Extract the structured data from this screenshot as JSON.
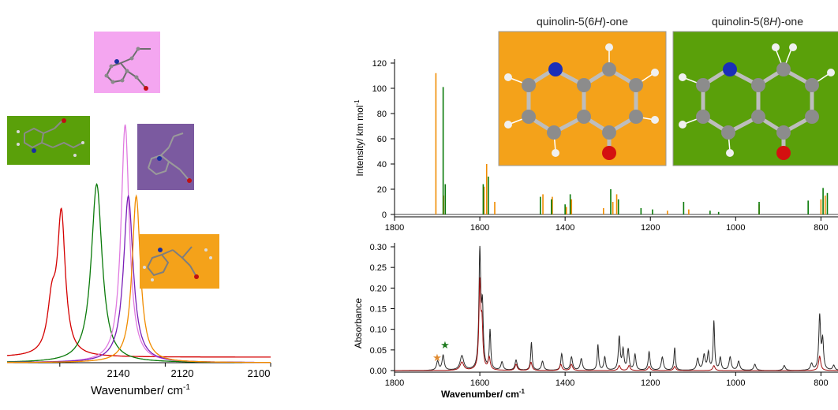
{
  "left_panel": {
    "xlabel": "Wavenumber/ cm",
    "xlabel_sup": "-1",
    "ticks": [
      "2140",
      "2120",
      "2100"
    ],
    "tick_values": [
      2140,
      2120,
      2100
    ],
    "xlim": [
      2150,
      2100
    ]
  },
  "top_right": {
    "ylabel": "Intensity/ km mol",
    "ylabel_sup": "-1",
    "yticks": [
      "0",
      "20",
      "40",
      "60",
      "80",
      "100",
      "120"
    ],
    "xticks": [
      "1800",
      "1600",
      "1400",
      "1200",
      "1000",
      "800"
    ],
    "mol1_title": {
      "pre": "quinolin-5(6",
      "it": "H",
      "post": ")-one"
    },
    "mol2_title": {
      "pre": "quinolin-5(8",
      "it": "H",
      "post": ")-one"
    }
  },
  "bottom_right": {
    "ylabel": "Absorbance",
    "xlabel": "Wavenumber/ cm",
    "xlabel_sup": "-1",
    "yticks": [
      "0.00",
      "0.05",
      "0.10",
      "0.15",
      "0.20",
      "0.25",
      "0.30"
    ],
    "xticks": [
      "1800",
      "1600",
      "1400",
      "1200",
      "1000",
      "800"
    ],
    "star_glyph": "★"
  },
  "colors": {
    "red": "#d40000",
    "green": "#0a7a0a",
    "pink": "#e07ae0",
    "purple": "#7a1fb8",
    "orange": "#f08c00",
    "pink_bg": "#f4a6f0",
    "green_bg": "#5aa00a",
    "purple_bg": "#7b5aa0",
    "orange_bg": "#f4a21a",
    "dark": "#2a2a2a",
    "brown": "#a05020",
    "maroon": "#a01010"
  },
  "chart_data": [
    {
      "type": "line",
      "xlabel": "Wavenumber/ cm-1",
      "xlim": [
        2150,
        2100
      ],
      "series": [
        {
          "color": "red",
          "peaks": [
            [
              2139.7,
              1.0,
              0.9
            ],
            [
              2141.5,
              0.35,
              1.0
            ]
          ],
          "base": 0.04
        },
        {
          "color": "green",
          "peaks": [
            [
              2133,
              1.0,
              1.25
            ]
          ],
          "base": 0.0
        },
        {
          "color": "pink",
          "peaks": [
            [
              2127.6,
              1.0,
              0.95
            ]
          ],
          "base": 0.0
        },
        {
          "color": "purple",
          "peaks": [
            [
              2127,
              1.0,
              1.1
            ]
          ],
          "base": 0.0
        },
        {
          "color": "orange",
          "peaks": [
            [
              2125.5,
              1.0,
              0.95
            ]
          ],
          "base": 0.0
        }
      ]
    },
    {
      "type": "bar",
      "ylabel": "Intensity/ km mol-1",
      "xlim": [
        1800,
        760
      ],
      "ylim": [
        0,
        120
      ],
      "series": [
        {
          "color": "orange",
          "sticks": [
            [
              1703,
              112
            ],
            [
              1685,
              15
            ],
            [
              1590,
              22
            ],
            [
              1584,
              40
            ],
            [
              1565,
              10
            ],
            [
              1452,
              16
            ],
            [
              1430,
              14
            ],
            [
              1397,
              6
            ],
            [
              1385,
              12
            ],
            [
              1310,
              5
            ],
            [
              1288,
              10
            ],
            [
              1279,
              16
            ],
            [
              1160,
              3
            ],
            [
              1110,
              4
            ],
            [
              945,
              8
            ],
            [
              800,
              12
            ],
            [
              790,
              15
            ]
          ]
        },
        {
          "color": "green",
          "sticks": [
            [
              1686,
              101
            ],
            [
              1681,
              24
            ],
            [
              1592,
              24
            ],
            [
              1580,
              30
            ],
            [
              1458,
              14
            ],
            [
              1432,
              12
            ],
            [
              1400,
              8
            ],
            [
              1388,
              16
            ],
            [
              1293,
              20
            ],
            [
              1275,
              12
            ],
            [
              1222,
              5
            ],
            [
              1195,
              4
            ],
            [
              1122,
              10
            ],
            [
              1060,
              3
            ],
            [
              1040,
              2
            ],
            [
              945,
              10
            ],
            [
              830,
              11
            ],
            [
              795,
              21
            ],
            [
              785,
              17
            ]
          ]
        }
      ]
    },
    {
      "type": "line",
      "ylabel": "Absorbance",
      "xlabel": "Wavenumber/ cm-1",
      "xlim": [
        1800,
        760
      ],
      "ylim": [
        0,
        0.3
      ],
      "series": [
        {
          "color": "dark",
          "peaks": [
            [
              1699,
              0.022,
              3
            ],
            [
              1686,
              0.036,
              3
            ],
            [
              1642,
              0.035,
              5
            ],
            [
              1600,
              0.28,
              2.5
            ],
            [
              1594,
              0.14,
              2.5
            ],
            [
              1576,
              0.095,
              2
            ],
            [
              1548,
              0.02,
              3
            ],
            [
              1515,
              0.025,
              3
            ],
            [
              1479,
              0.068,
              2
            ],
            [
              1453,
              0.022,
              3
            ],
            [
              1408,
              0.04,
              2.5
            ],
            [
              1385,
              0.032,
              3
            ],
            [
              1362,
              0.028,
              3
            ],
            [
              1323,
              0.062,
              2
            ],
            [
              1307,
              0.032,
              2.5
            ],
            [
              1273,
              0.08,
              2.5
            ],
            [
              1264,
              0.048,
              2.5
            ],
            [
              1252,
              0.05,
              2.5
            ],
            [
              1236,
              0.038,
              2.5
            ],
            [
              1203,
              0.045,
              2.5
            ],
            [
              1172,
              0.032,
              3
            ],
            [
              1143,
              0.055,
              2
            ],
            [
              1089,
              0.028,
              3
            ],
            [
              1074,
              0.036,
              3
            ],
            [
              1064,
              0.042,
              2.5
            ],
            [
              1051,
              0.118,
              2
            ],
            [
              1036,
              0.03,
              2.5
            ],
            [
              1013,
              0.032,
              3
            ],
            [
              993,
              0.022,
              3
            ],
            [
              955,
              0.015,
              3
            ],
            [
              886,
              0.012,
              3
            ],
            [
              822,
              0.016,
              3
            ],
            [
              803,
              0.13,
              2.5
            ],
            [
              796,
              0.07,
              2.5
            ],
            [
              770,
              0.012,
              3
            ]
          ]
        },
        {
          "color": "maroon",
          "peaks": [
            [
              1600,
              0.205,
              2.5
            ],
            [
              1595,
              0.1,
              2.5
            ],
            [
              1642,
              0.02,
              5
            ],
            [
              1578,
              0.03,
              3
            ],
            [
              1515,
              0.015,
              3
            ],
            [
              1480,
              0.02,
              3
            ],
            [
              1410,
              0.015,
              3
            ],
            [
              1385,
              0.015,
              3
            ],
            [
              1273,
              0.012,
              3
            ],
            [
              1250,
              0.012,
              3
            ],
            [
              1203,
              0.01,
              3
            ],
            [
              1143,
              0.01,
              3
            ],
            [
              1051,
              0.012,
              3
            ],
            [
              803,
              0.035,
              3
            ]
          ]
        }
      ]
    }
  ]
}
